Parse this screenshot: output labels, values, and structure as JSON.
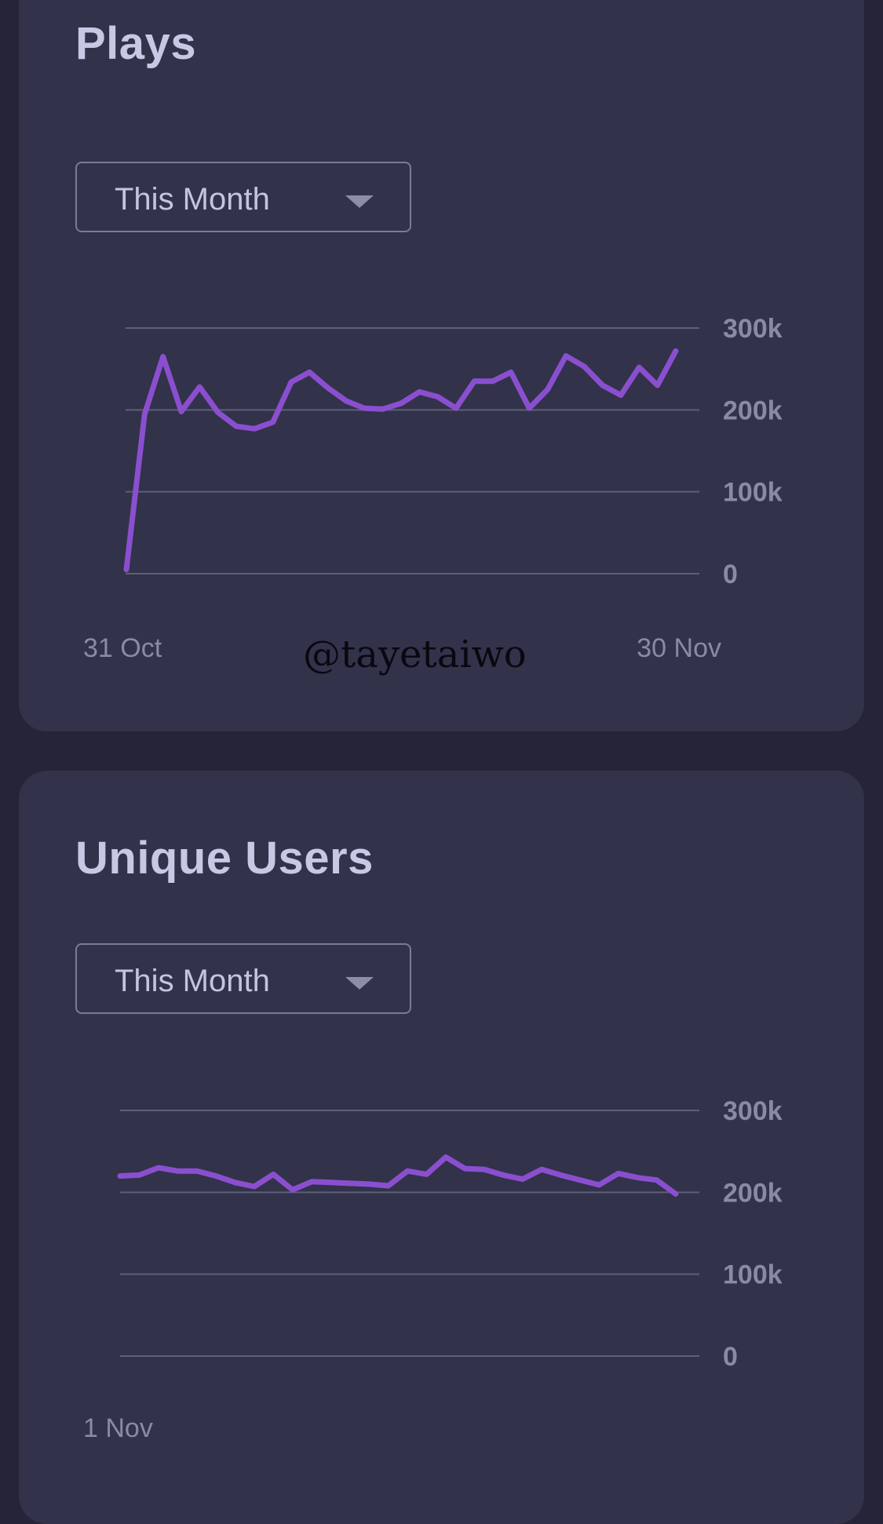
{
  "colors": {
    "background": "#252438",
    "card": "#32324a",
    "line": "#8a4fcf",
    "grid": "#5e5f78",
    "tick": "#8a8ba3",
    "title": "#c6c8e4"
  },
  "plays": {
    "title": "Plays",
    "dropdown": {
      "selected": "This Month",
      "icon": "caret-down-icon"
    },
    "chart_data": {
      "type": "line",
      "title": "Plays",
      "x_start_label": "31 Oct",
      "x_end_label": "30 Nov",
      "y_ticks": [
        "300k",
        "200k",
        "100k",
        "0"
      ],
      "ylim": [
        0,
        300000
      ],
      "grid": true,
      "y_axis_position": "right",
      "series": [
        {
          "values": [
            5000,
            195000,
            265000,
            198000,
            228000,
            197000,
            180000,
            177000,
            185000,
            234000,
            246000,
            227000,
            211000,
            202000,
            201000,
            208000,
            222000,
            216000,
            202000,
            235000,
            235000,
            246000,
            202000,
            225000,
            266000,
            253000,
            230000,
            218000,
            252000,
            230000,
            272000
          ]
        }
      ]
    }
  },
  "users": {
    "title": "Unique Users",
    "dropdown": {
      "selected": "This Month",
      "icon": "caret-down-icon"
    },
    "chart_data": {
      "type": "line",
      "title": "Unique Users",
      "x_start_label": "1 Nov",
      "y_ticks": [
        "300k",
        "200k",
        "100k",
        "0"
      ],
      "ylim": [
        0,
        300000
      ],
      "grid": true,
      "y_axis_position": "right",
      "series": [
        {
          "values": [
            220000,
            221000,
            230000,
            226000,
            226000,
            220000,
            212000,
            207000,
            222000,
            203000,
            213000,
            212000,
            211000,
            210000,
            208000,
            226000,
            222000,
            243000,
            229000,
            228000,
            221000,
            216000,
            228000,
            221000,
            215000,
            209000,
            223000,
            218000,
            215000,
            198000
          ]
        }
      ]
    }
  },
  "watermark": "@tayetaiwo"
}
